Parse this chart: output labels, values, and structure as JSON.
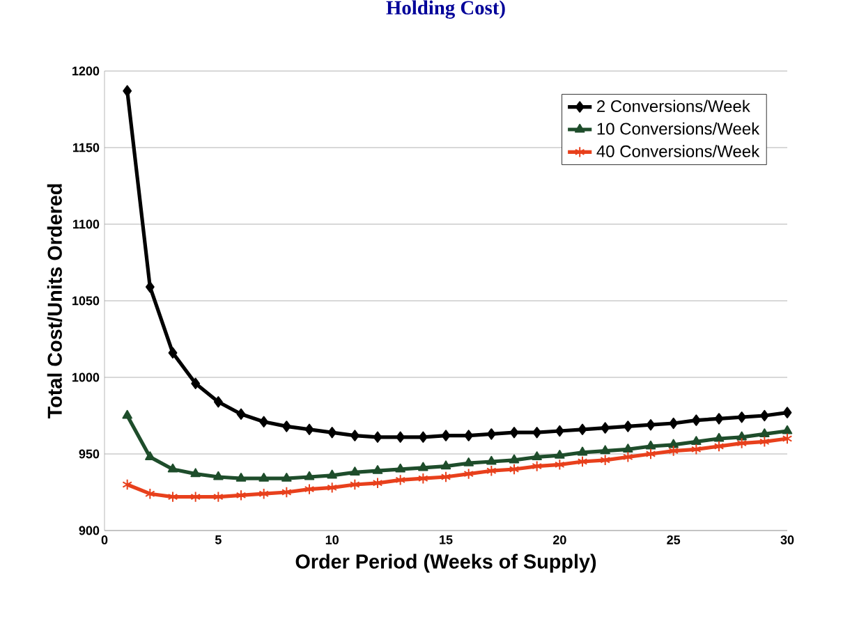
{
  "chart_data": {
    "type": "line",
    "title": "Holding Cost)",
    "xlabel": "Order Period (Weeks of Supply)",
    "ylabel": "Total Cost/Units Ordered",
    "x": [
      1,
      2,
      3,
      4,
      5,
      6,
      7,
      8,
      9,
      10,
      11,
      12,
      13,
      14,
      15,
      16,
      17,
      18,
      19,
      20,
      21,
      22,
      23,
      24,
      25,
      26,
      27,
      28,
      29,
      30
    ],
    "series": [
      {
        "name": "2 Conversions/Week",
        "color": "#000000",
        "marker": "diamond",
        "values": [
          1187,
          1059,
          1016,
          996,
          984,
          976,
          971,
          968,
          966,
          964,
          962,
          961,
          961,
          961,
          962,
          962,
          963,
          964,
          964,
          965,
          966,
          967,
          968,
          969,
          970,
          972,
          973,
          974,
          975,
          977
        ]
      },
      {
        "name": "10 Conversions/Week",
        "color": "#1e4d2b",
        "marker": "triangle",
        "values": [
          975,
          948,
          940,
          937,
          935,
          934,
          934,
          934,
          935,
          936,
          938,
          939,
          940,
          941,
          942,
          944,
          945,
          946,
          948,
          949,
          951,
          952,
          953,
          955,
          956,
          958,
          960,
          961,
          963,
          965
        ]
      },
      {
        "name": "40 Conversions/Week",
        "color": "#e8401c",
        "marker": "cross",
        "values": [
          930,
          924,
          922,
          922,
          922,
          923,
          924,
          925,
          927,
          928,
          930,
          931,
          933,
          934,
          935,
          937,
          939,
          940,
          942,
          943,
          945,
          946,
          948,
          950,
          952,
          953,
          955,
          957,
          958,
          960
        ]
      }
    ],
    "xlim": [
      0,
      30
    ],
    "xticks": [
      0,
      5,
      10,
      15,
      20,
      25,
      30
    ],
    "ylim": [
      900,
      1200
    ],
    "yticks": [
      900,
      950,
      1000,
      1050,
      1100,
      1150,
      1200
    ],
    "grid": "y",
    "legend": "top right",
    "line_style": "solid"
  }
}
